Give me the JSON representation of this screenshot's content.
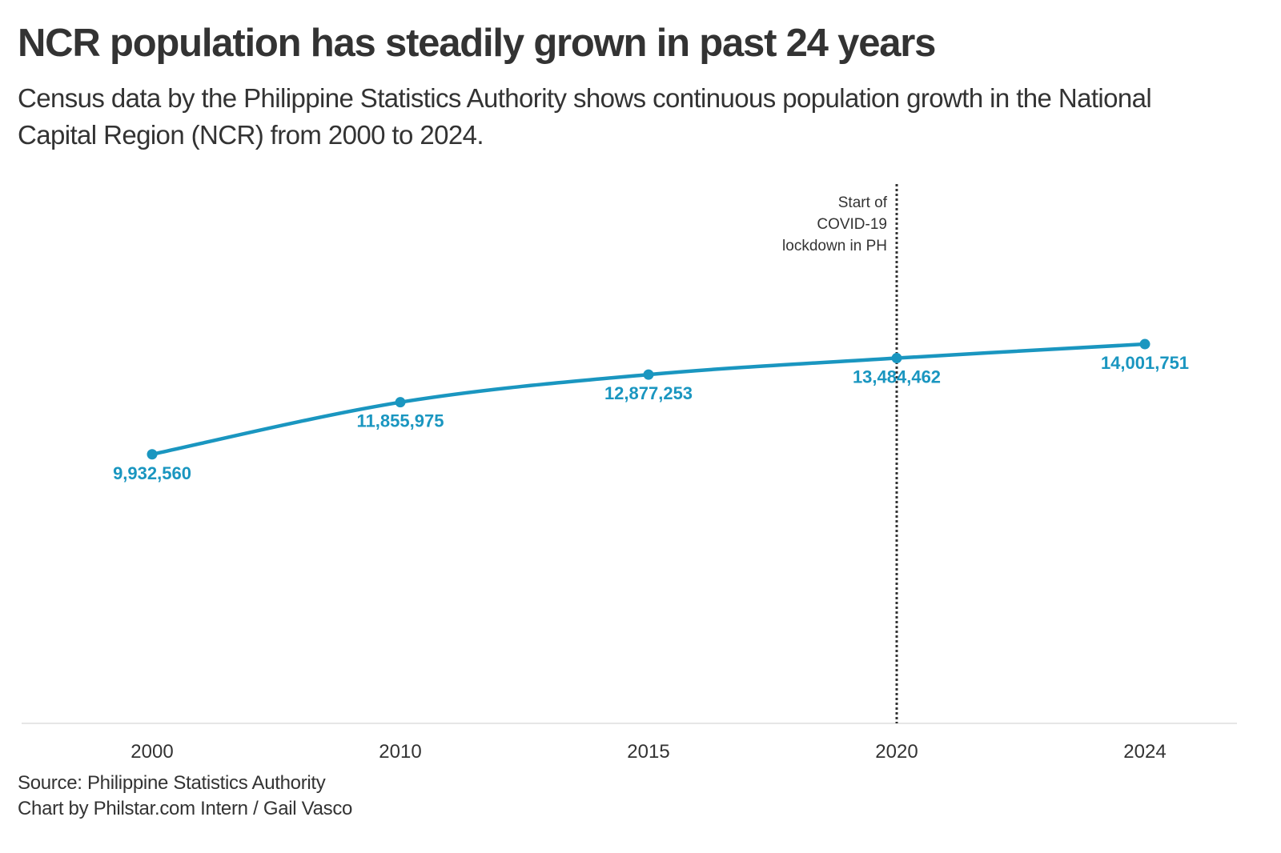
{
  "title": "NCR population has steadily grown in past 24 years",
  "subtitle": "Census data by the Philippine Statistics Authority shows continuous population growth in the National Capital Region (NCR) from 2000 to 2024.",
  "source": "Source: Philippine Statistics Authority",
  "credit": "Chart by Philstar.com Intern / Gail Vasco",
  "colors": {
    "line": "#1a96c0",
    "axis": "#e6e6e6",
    "annotation": "#333333",
    "text": "#333333"
  },
  "chart_data": {
    "type": "line",
    "categories": [
      "2000",
      "2010",
      "2015",
      "2020",
      "2024"
    ],
    "series": [
      {
        "values": [
          9932560,
          11855975,
          12877253,
          13484462,
          14001751
        ],
        "labels": [
          "9,932,560",
          "11,855,975",
          "12,877,253",
          "13,484,462",
          "14,001,751"
        ]
      }
    ],
    "ylim": [
      0,
      20000000
    ],
    "xlabel": "",
    "ylabel": "",
    "grid": false,
    "annotation": {
      "category": "2020",
      "lines": [
        "Start of",
        "COVID-19",
        "lockdown in PH"
      ]
    }
  }
}
